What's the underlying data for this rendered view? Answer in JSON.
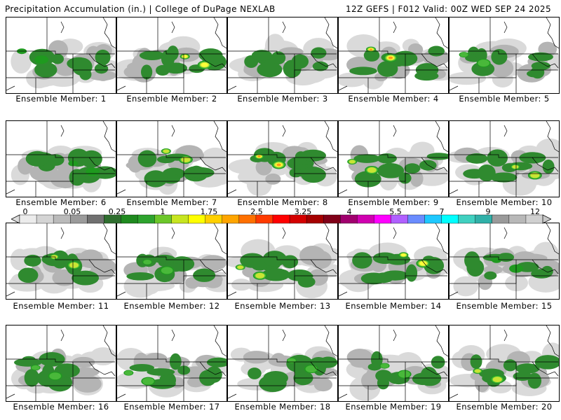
{
  "header": {
    "title_left": "Precipitation Accumulation (in.) | College of DuPage NEXLAB",
    "title_right": "12Z GEFS | F012 Valid: 00Z WED SEP 24 2025"
  },
  "map_data": {
    "variable": "Precipitation Accumulation",
    "units": "in.",
    "model": "12Z GEFS",
    "forecast_hour": "F012",
    "valid": "00Z WED SEP 24 2025",
    "members": [
      {
        "id": 1,
        "label": "Ensemble Member: 1",
        "max_level": "0.25-0.5"
      },
      {
        "id": 2,
        "label": "Ensemble Member: 2",
        "max_level": "1-1.25"
      },
      {
        "id": 3,
        "label": "Ensemble Member: 3",
        "max_level": "0.1-0.25"
      },
      {
        "id": 4,
        "label": "Ensemble Member: 4",
        "max_level": "1.25-1.5"
      },
      {
        "id": 5,
        "label": "Ensemble Member: 5",
        "max_level": "0.5-0.75"
      },
      {
        "id": 6,
        "label": "Ensemble Member: 6",
        "max_level": "0.25-0.5"
      },
      {
        "id": 7,
        "label": "Ensemble Member: 7",
        "max_level": "0.75-1"
      },
      {
        "id": 8,
        "label": "Ensemble Member: 8",
        "max_level": "1.75-2"
      },
      {
        "id": 9,
        "label": "Ensemble Member: 9",
        "max_level": "0.75-1"
      },
      {
        "id": 10,
        "label": "Ensemble Member: 10",
        "max_level": "0.75-1"
      },
      {
        "id": 11,
        "label": "Ensemble Member: 11",
        "max_level": "0.75-1"
      },
      {
        "id": 12,
        "label": "Ensemble Member: 12",
        "max_level": "0.5-0.75"
      },
      {
        "id": 13,
        "label": "Ensemble Member: 13",
        "max_level": "0.75-1"
      },
      {
        "id": 14,
        "label": "Ensemble Member: 14",
        "max_level": "1-1.25"
      },
      {
        "id": 15,
        "label": "Ensemble Member: 15",
        "max_level": "0.25-0.5"
      },
      {
        "id": 16,
        "label": "Ensemble Member: 16",
        "max_level": "0.5-0.75"
      },
      {
        "id": 17,
        "label": "Ensemble Member: 17",
        "max_level": "0.5-0.75"
      },
      {
        "id": 18,
        "label": "Ensemble Member: 18",
        "max_level": "0.5-0.75"
      },
      {
        "id": 19,
        "label": "Ensemble Member: 19",
        "max_level": "0.5-0.75"
      },
      {
        "id": 20,
        "label": "Ensemble Member: 20",
        "max_level": "0.75-1"
      }
    ]
  },
  "colorbar": {
    "tick_labels": [
      "0",
      "0.05",
      "0.25",
      "1",
      "1.75",
      "2.5",
      "3.25",
      "4",
      "5.5",
      "7",
      "9",
      "12"
    ],
    "colors": [
      "#ececec",
      "#d4d4d4",
      "#bababa",
      "#9b9b9b",
      "#707070",
      "#2f6e2f",
      "#1f8a1f",
      "#2ea32e",
      "#6cc72a",
      "#c7e520",
      "#ffff00",
      "#ffd000",
      "#ffa500",
      "#ff7000",
      "#ff3a00",
      "#ff0000",
      "#d40000",
      "#a50000",
      "#800018",
      "#a0006e",
      "#d000b0",
      "#ff00ff",
      "#b060ff",
      "#6a8cff",
      "#1ec8ff",
      "#00ffff",
      "#40d0c0",
      "#30b0a8",
      "#9a9a9a",
      "#b8b8b8",
      "#d0d0d0"
    ]
  }
}
